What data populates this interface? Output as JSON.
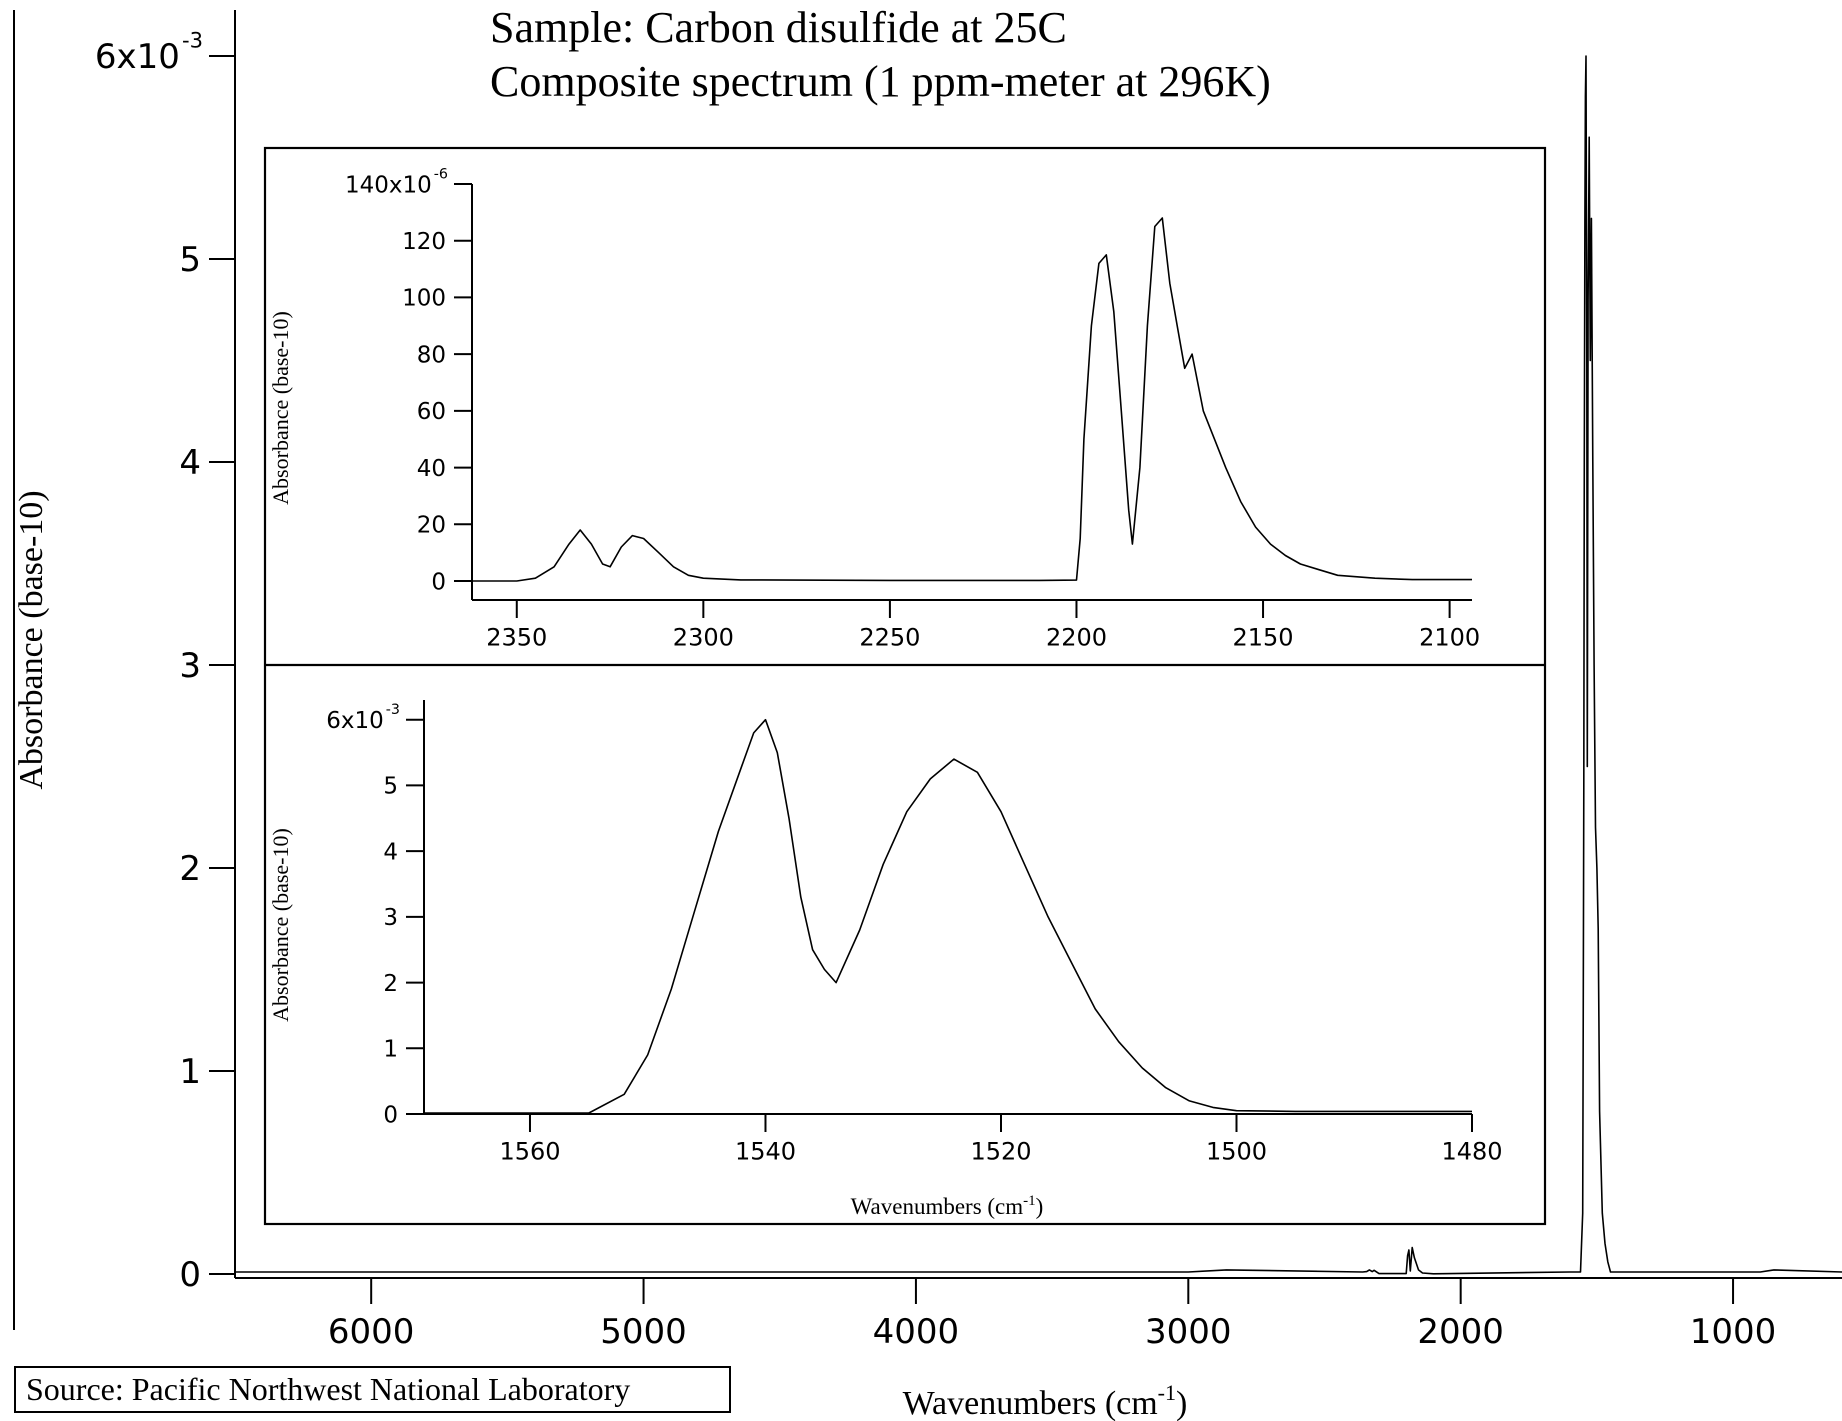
{
  "chart_data": [
    {
      "id": "main",
      "type": "line",
      "title": "Sample: Carbon disulfide at 25C",
      "subtitle": "Composite spectrum (1 ppm-meter at 296K)",
      "xlabel": "Wavenumbers (cm",
      "xlabel_sup": "-1",
      "xlabel_close": ")",
      "ylabel": "Absorbance (base-10)",
      "xlim": [
        6500,
        600
      ],
      "ylim": [
        0,
        0.006
      ],
      "x_reversed": true,
      "xticks": [
        6000,
        5000,
        4000,
        3000,
        2000,
        1000
      ],
      "xtick_labels": [
        "6000",
        "5000",
        "4000",
        "3000",
        "2000",
        "1000"
      ],
      "yticks": [
        0,
        0.001,
        0.002,
        0.003,
        0.004,
        0.005,
        0.006
      ],
      "ytick_labels": [
        "0",
        "1",
        "2",
        "3",
        "4",
        "5",
        "6x10"
      ],
      "ytick_top_sup": "-3",
      "series": [
        {
          "x": [
            6500,
            3000,
            2860,
            2360,
            2345,
            2335,
            2325,
            2318,
            2300,
            2200,
            2195,
            2190,
            2185,
            2178,
            2170,
            2155,
            2140,
            2100,
            1600,
            1560,
            1552,
            1550,
            1548,
            1546,
            1544,
            1542,
            1540,
            1537,
            1535,
            1532,
            1528,
            1524,
            1520,
            1515,
            1510,
            1505,
            1500,
            1495,
            1490,
            1480,
            1470,
            1460,
            1450,
            1300,
            900,
            850,
            600
          ],
          "y": [
            1e-05,
            1e-05,
            2e-05,
            1e-05,
            1.2e-05,
            2e-05,
            1.2e-05,
            1.8e-05,
            2e-06,
            2e-06,
            9e-05,
            0.000118,
            1.5e-05,
            0.00013,
            8e-05,
            2e-05,
            5e-06,
            1e-06,
            1e-05,
            1e-05,
            0.0003,
            0.0012,
            0.0024,
            0.004,
            0.0052,
            0.0058,
            0.006,
            0.0045,
            0.0025,
            0.0048,
            0.0056,
            0.0045,
            0.0052,
            0.004,
            0.003,
            0.0022,
            0.002,
            0.0017,
            0.0008,
            0.0003,
            0.00015,
            6e-05,
            1e-05,
            1e-05,
            1e-05,
            2e-05,
            1e-05
          ]
        }
      ]
    },
    {
      "id": "inset-top",
      "type": "line",
      "ylabel": "Absorbance (base-10)",
      "xlim": [
        2362,
        2094
      ],
      "ylim": [
        0,
        0.00014
      ],
      "x_reversed": true,
      "xticks": [
        2350,
        2300,
        2250,
        2200,
        2150,
        2100
      ],
      "xtick_labels": [
        "2350",
        "2300",
        "2250",
        "2200",
        "2150",
        "2100"
      ],
      "yticks": [
        0,
        2e-05,
        4e-05,
        6e-05,
        8e-05,
        0.0001,
        0.00012,
        0.00014
      ],
      "ytick_labels": [
        "0",
        "20",
        "40",
        "60",
        "80",
        "100",
        "120",
        "140x10"
      ],
      "ytick_top_sup": "-6",
      "series": [
        {
          "x": [
            2362,
            2350,
            2345,
            2340,
            2336,
            2333,
            2330,
            2327,
            2325,
            2322,
            2319,
            2316,
            2312,
            2308,
            2304,
            2300,
            2290,
            2250,
            2210,
            2200,
            2199,
            2198,
            2196,
            2194,
            2192,
            2190,
            2188,
            2186,
            2185,
            2183,
            2181,
            2179,
            2177,
            2175,
            2173,
            2171,
            2169,
            2166,
            2163,
            2160,
            2156,
            2152,
            2148,
            2144,
            2140,
            2135,
            2130,
            2120,
            2110,
            2094
          ],
          "y": [
            0,
            0,
            1e-06,
            5e-06,
            1.3e-05,
            1.8e-05,
            1.3e-05,
            6e-06,
            5e-06,
            1.2e-05,
            1.6e-05,
            1.5e-05,
            1e-05,
            5e-06,
            2e-06,
            1e-06,
            4e-07,
            2e-07,
            2e-07,
            3e-07,
            1.5e-05,
            5e-05,
            9e-05,
            0.000112,
            0.000115,
            9.5e-05,
            6e-05,
            2.5e-05,
            1.3e-05,
            4e-05,
            9e-05,
            0.000125,
            0.000128,
            0.000105,
            9e-05,
            7.5e-05,
            8e-05,
            6e-05,
            5e-05,
            4e-05,
            2.8e-05,
            1.9e-05,
            1.3e-05,
            9e-06,
            6e-06,
            4e-06,
            2e-06,
            1e-06,
            5e-07,
            5e-07
          ]
        }
      ]
    },
    {
      "id": "inset-bottom",
      "type": "line",
      "ylabel": "Absorbance (base-10)",
      "xlabel": "Wavenumbers (cm",
      "xlabel_sup": "-1",
      "xlabel_close": ")",
      "xlim": [
        1569,
        1480
      ],
      "ylim": [
        0,
        0.0063
      ],
      "x_reversed": true,
      "xticks": [
        1560,
        1540,
        1520,
        1500,
        1480
      ],
      "xtick_labels": [
        "1560",
        "1540",
        "1520",
        "1500",
        "1480"
      ],
      "yticks": [
        0,
        0.001,
        0.002,
        0.003,
        0.004,
        0.005,
        0.006
      ],
      "ytick_labels": [
        "0",
        "1",
        "2",
        "3",
        "4",
        "5",
        "6x10"
      ],
      "ytick_top_sup": "-3",
      "series": [
        {
          "x": [
            1569,
            1560,
            1555,
            1552,
            1550,
            1548,
            1546,
            1544,
            1542,
            1541,
            1540,
            1539,
            1538,
            1537,
            1536,
            1535,
            1534,
            1532,
            1530,
            1528,
            1526,
            1524,
            1522,
            1520,
            1518,
            1516,
            1514,
            1512,
            1510,
            1508,
            1506,
            1504,
            1502,
            1500,
            1495,
            1490,
            1485,
            1480
          ],
          "y": [
            0,
            0,
            1e-05,
            0.0003,
            0.0009,
            0.0019,
            0.0031,
            0.0043,
            0.0053,
            0.0058,
            0.006,
            0.0055,
            0.0045,
            0.0033,
            0.0025,
            0.0022,
            0.002,
            0.0028,
            0.0038,
            0.0046,
            0.0051,
            0.0054,
            0.0052,
            0.0046,
            0.0038,
            0.003,
            0.0023,
            0.0016,
            0.0011,
            0.0007,
            0.0004,
            0.0002,
            0.0001,
            5e-05,
            4e-05,
            4e-05,
            4e-05,
            4e-05
          ]
        }
      ]
    }
  ],
  "source_label": "Source: Pacific Northwest National Laboratory"
}
